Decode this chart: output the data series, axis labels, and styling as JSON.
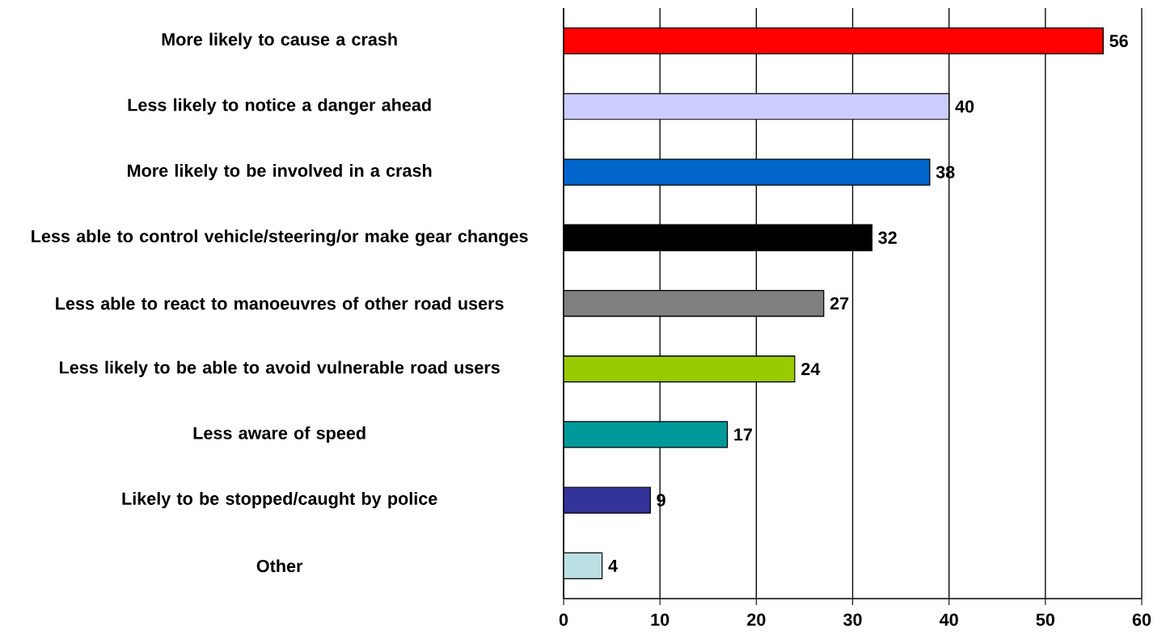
{
  "chart_data": {
    "type": "bar",
    "orientation": "horizontal",
    "categories": [
      "More likely to cause a crash",
      "Less likely to notice a danger ahead",
      "More likely to be involved in a crash",
      "Less able to control vehicle/steering/or make gear changes",
      "Less able to react to manoeuvres of other road users",
      "Less likely to be able to avoid vulnerable road users",
      "Less aware of speed",
      "Likely to be stopped/caught by police",
      "Other"
    ],
    "values": [
      56,
      40,
      38,
      32,
      27,
      24,
      17,
      9,
      4
    ],
    "colors": [
      "#ff0000",
      "#ccccff",
      "#0066cc",
      "#000000",
      "#808080",
      "#99cc00",
      "#009999",
      "#333399",
      "#bbe0e3"
    ],
    "xlim": [
      0,
      60
    ],
    "xticks": [
      0,
      10,
      20,
      30,
      40,
      50,
      60
    ],
    "grid": "x",
    "data_labels": true
  }
}
